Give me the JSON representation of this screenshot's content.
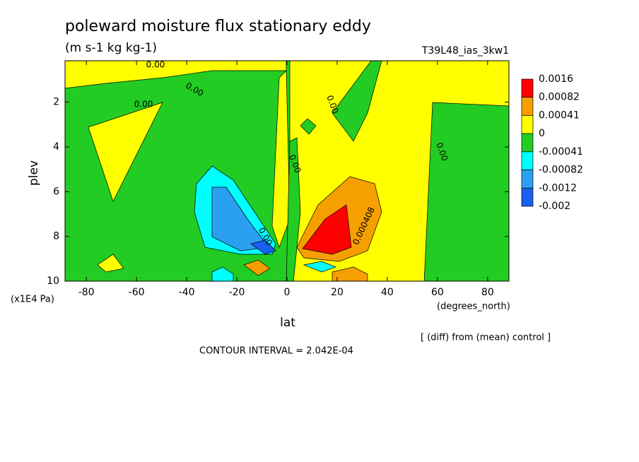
{
  "chart_data": {
    "type": "contour",
    "title": "poleward moisture flux stationary eddy",
    "subtitle": "(m s-1 kg kg-1)",
    "run_id": "T39L48_ias_3kw1",
    "x_label": "lat",
    "x_unit": "(degrees_north)",
    "y_label": "plev",
    "y_unit": "(x1E4 Pa)",
    "note": "[ (diff) from (mean) control ]",
    "footer": "CONTOUR INTERVAL = 2.042E-04",
    "xlim": [
      -88.5,
      88.5
    ],
    "xticks": [
      -80,
      -60,
      -40,
      -20,
      0,
      20,
      40,
      60,
      80
    ],
    "ylim": [
      10,
      0.15
    ],
    "yticks": [
      2,
      4,
      6,
      8,
      10
    ],
    "levels": [
      0.0016,
      0.00082,
      0.00041,
      0,
      -0.00041,
      -0.00082,
      -0.0012,
      -0.002
    ],
    "colors": [
      "#ff0000",
      "#f5a000",
      "#ffff00",
      "#22cc22",
      "#00ffff",
      "#2ca0f0",
      "#1a60f0"
    ],
    "contour_labels": [
      "0.00",
      "0.00",
      "0.00",
      "0.00",
      "0.00",
      "0.00",
      "0.000408",
      "0.00"
    ]
  }
}
